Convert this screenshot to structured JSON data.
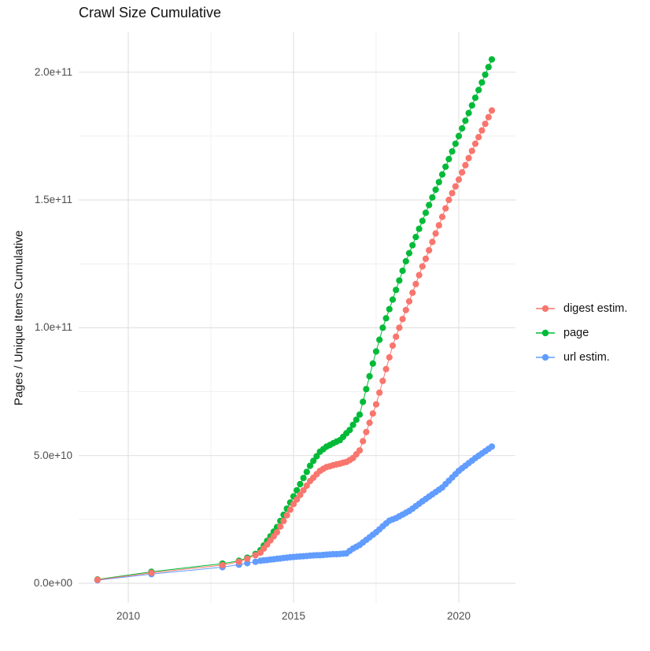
{
  "title": "Crawl Size Cumulative",
  "axes": {
    "y_label": "Pages / Unique Items Cumulative",
    "x_ticks": [
      {
        "label": "2010",
        "year": 2010
      },
      {
        "label": "2015",
        "year": 2015
      },
      {
        "label": "2020",
        "year": 2020
      }
    ],
    "y_ticks": [
      {
        "label": "0.0e+00",
        "value_billion": 0
      },
      {
        "label": "5.0e+10",
        "value_billion": 50
      },
      {
        "label": "1.0e+11",
        "value_billion": 100
      },
      {
        "label": "1.5e+11",
        "value_billion": 150
      },
      {
        "label": "2.0e+11",
        "value_billion": 200
      }
    ]
  },
  "legend": {
    "items": [
      {
        "label": "digest estim.",
        "color": "#F8766D"
      },
      {
        "label": "page",
        "color": "#00BA38"
      },
      {
        "label": "url estim.",
        "color": "#619CFF"
      }
    ]
  },
  "chart_data": {
    "type": "scatter",
    "title": "Crawl Size Cumulative",
    "xlabel": "",
    "ylabel": "Pages / Unique Items Cumulative",
    "x_unit": "year (decimal)",
    "value_unit": "billions of pages/items (1e9)",
    "xlim": [
      2008.5,
      2021.7
    ],
    "ylim_billion": [
      -10,
      215
    ],
    "grid": true,
    "legend_position": "right",
    "marker": "filled-circle-with-line",
    "series": [
      {
        "name": "digest estim.",
        "color": "#F8766D",
        "points": [
          [
            2009.07,
            1.4
          ],
          [
            2010.7,
            4.1
          ],
          [
            2012.85,
            7.1
          ],
          [
            2013.35,
            8.4
          ],
          [
            2013.6,
            9.6
          ],
          [
            2013.85,
            11.0
          ],
          [
            2014.0,
            12.0
          ],
          [
            2014.1,
            13.6
          ],
          [
            2014.2,
            15.2
          ],
          [
            2014.3,
            16.8
          ],
          [
            2014.4,
            18.4
          ],
          [
            2014.5,
            20.0
          ],
          [
            2014.6,
            22.2
          ],
          [
            2014.7,
            24.4
          ],
          [
            2014.8,
            26.6
          ],
          [
            2014.9,
            28.8
          ],
          [
            2015.0,
            31.0
          ],
          [
            2015.1,
            32.8
          ],
          [
            2015.2,
            34.6
          ],
          [
            2015.3,
            36.4
          ],
          [
            2015.4,
            38.2
          ],
          [
            2015.5,
            40.0
          ],
          [
            2015.6,
            41.3
          ],
          [
            2015.7,
            42.7
          ],
          [
            2015.8,
            44.0
          ],
          [
            2015.9,
            44.8
          ],
          [
            2016.0,
            45.5
          ],
          [
            2016.1,
            45.8
          ],
          [
            2016.2,
            46.2
          ],
          [
            2016.3,
            46.5
          ],
          [
            2016.4,
            46.8
          ],
          [
            2016.5,
            47.2
          ],
          [
            2016.6,
            47.5
          ],
          [
            2016.7,
            48.2
          ],
          [
            2016.8,
            49.0
          ],
          [
            2016.9,
            50.5
          ],
          [
            2017.0,
            52.0
          ],
          [
            2017.1,
            55.6
          ],
          [
            2017.2,
            59.2
          ],
          [
            2017.3,
            62.8
          ],
          [
            2017.4,
            66.4
          ],
          [
            2017.5,
            70.0
          ],
          [
            2017.6,
            74.6
          ],
          [
            2017.7,
            79.2
          ],
          [
            2017.8,
            83.8
          ],
          [
            2017.9,
            88.4
          ],
          [
            2018.0,
            93.0
          ],
          [
            2018.1,
            96.5
          ],
          [
            2018.2,
            100.0
          ],
          [
            2018.3,
            103.4
          ],
          [
            2018.4,
            106.9
          ],
          [
            2018.5,
            110.3
          ],
          [
            2018.6,
            113.7
          ],
          [
            2018.7,
            117.1
          ],
          [
            2018.8,
            120.6
          ],
          [
            2018.9,
            124.0
          ],
          [
            2019.0,
            127.0
          ],
          [
            2019.1,
            130.3
          ],
          [
            2019.2,
            133.6
          ],
          [
            2019.3,
            136.9
          ],
          [
            2019.4,
            140.1
          ],
          [
            2019.5,
            143.4
          ],
          [
            2019.6,
            146.7
          ],
          [
            2019.7,
            150.0
          ],
          [
            2019.8,
            152.7
          ],
          [
            2019.9,
            155.3
          ],
          [
            2020.0,
            158.0
          ],
          [
            2020.1,
            160.8
          ],
          [
            2020.2,
            163.6
          ],
          [
            2020.3,
            166.4
          ],
          [
            2020.4,
            169.2
          ],
          [
            2020.5,
            172.0
          ],
          [
            2020.6,
            174.6
          ],
          [
            2020.7,
            177.2
          ],
          [
            2020.8,
            179.8
          ],
          [
            2020.9,
            182.4
          ],
          [
            2021.0,
            185.0
          ]
        ]
      },
      {
        "name": "page",
        "color": "#00BA38",
        "points": [
          [
            2009.07,
            1.5
          ],
          [
            2010.7,
            4.5
          ],
          [
            2012.85,
            7.7
          ],
          [
            2013.35,
            8.8
          ],
          [
            2013.6,
            10.0
          ],
          [
            2013.85,
            11.5
          ],
          [
            2014.0,
            13.0
          ],
          [
            2014.1,
            14.8
          ],
          [
            2014.2,
            16.6
          ],
          [
            2014.3,
            18.4
          ],
          [
            2014.4,
            20.2
          ],
          [
            2014.5,
            22.0
          ],
          [
            2014.6,
            24.4
          ],
          [
            2014.7,
            26.8
          ],
          [
            2014.8,
            29.2
          ],
          [
            2014.9,
            31.6
          ],
          [
            2015.0,
            34.0
          ],
          [
            2015.1,
            36.4
          ],
          [
            2015.2,
            38.8
          ],
          [
            2015.3,
            41.2
          ],
          [
            2015.4,
            43.6
          ],
          [
            2015.5,
            46.0
          ],
          [
            2015.6,
            47.9
          ],
          [
            2015.7,
            49.7
          ],
          [
            2015.8,
            51.5
          ],
          [
            2015.9,
            52.5
          ],
          [
            2016.0,
            53.5
          ],
          [
            2016.1,
            54.1
          ],
          [
            2016.2,
            54.8
          ],
          [
            2016.3,
            55.4
          ],
          [
            2016.4,
            56.0
          ],
          [
            2016.5,
            57.3
          ],
          [
            2016.6,
            58.7
          ],
          [
            2016.7,
            60.0
          ],
          [
            2016.8,
            62.0
          ],
          [
            2016.9,
            64.0
          ],
          [
            2017.0,
            66.0
          ],
          [
            2017.1,
            71.0
          ],
          [
            2017.2,
            76.0
          ],
          [
            2017.3,
            81.0
          ],
          [
            2017.4,
            86.0
          ],
          [
            2017.5,
            90.7
          ],
          [
            2017.6,
            95.3
          ],
          [
            2017.7,
            100.0
          ],
          [
            2017.8,
            103.7
          ],
          [
            2017.9,
            107.3
          ],
          [
            2018.0,
            111.0
          ],
          [
            2018.1,
            114.8
          ],
          [
            2018.2,
            118.5
          ],
          [
            2018.3,
            122.3
          ],
          [
            2018.4,
            126.0
          ],
          [
            2018.5,
            129.2
          ],
          [
            2018.6,
            132.3
          ],
          [
            2018.7,
            135.5
          ],
          [
            2018.8,
            138.7
          ],
          [
            2018.9,
            141.8
          ],
          [
            2019.0,
            145.0
          ],
          [
            2019.1,
            148.0
          ],
          [
            2019.2,
            151.0
          ],
          [
            2019.3,
            154.0
          ],
          [
            2019.4,
            157.0
          ],
          [
            2019.5,
            160.0
          ],
          [
            2019.6,
            163.0
          ],
          [
            2019.7,
            166.0
          ],
          [
            2019.8,
            169.0
          ],
          [
            2019.9,
            172.0
          ],
          [
            2020.0,
            175.0
          ],
          [
            2020.1,
            178.0
          ],
          [
            2020.2,
            181.0
          ],
          [
            2020.3,
            184.0
          ],
          [
            2020.4,
            187.0
          ],
          [
            2020.5,
            190.0
          ],
          [
            2020.6,
            193.0
          ],
          [
            2020.7,
            196.0
          ],
          [
            2020.8,
            199.0
          ],
          [
            2020.9,
            202.0
          ],
          [
            2021.0,
            205.0
          ]
        ]
      },
      {
        "name": "url estim.",
        "color": "#619CFF",
        "points": [
          [
            2009.07,
            1.2
          ],
          [
            2010.7,
            3.6
          ],
          [
            2012.85,
            6.3
          ],
          [
            2013.35,
            7.3
          ],
          [
            2013.6,
            7.9
          ],
          [
            2013.85,
            8.4
          ],
          [
            2014.0,
            8.8
          ],
          [
            2014.1,
            9.0
          ],
          [
            2014.2,
            9.1
          ],
          [
            2014.3,
            9.3
          ],
          [
            2014.4,
            9.4
          ],
          [
            2014.5,
            9.6
          ],
          [
            2014.6,
            9.7
          ],
          [
            2014.7,
            9.9
          ],
          [
            2014.8,
            10.0
          ],
          [
            2014.9,
            10.2
          ],
          [
            2015.0,
            10.3
          ],
          [
            2015.1,
            10.4
          ],
          [
            2015.2,
            10.5
          ],
          [
            2015.3,
            10.6
          ],
          [
            2015.4,
            10.7
          ],
          [
            2015.5,
            10.8
          ],
          [
            2015.6,
            10.9
          ],
          [
            2015.7,
            11.0
          ],
          [
            2015.8,
            11.0
          ],
          [
            2015.9,
            11.1
          ],
          [
            2016.0,
            11.2
          ],
          [
            2016.1,
            11.3
          ],
          [
            2016.2,
            11.4
          ],
          [
            2016.3,
            11.4
          ],
          [
            2016.4,
            11.5
          ],
          [
            2016.5,
            11.6
          ],
          [
            2016.6,
            11.7
          ],
          [
            2016.7,
            12.7
          ],
          [
            2016.8,
            13.6
          ],
          [
            2016.9,
            14.3
          ],
          [
            2017.0,
            15.0
          ],
          [
            2017.1,
            16.0
          ],
          [
            2017.2,
            17.0
          ],
          [
            2017.3,
            18.0
          ],
          [
            2017.4,
            19.0
          ],
          [
            2017.5,
            20.0
          ],
          [
            2017.6,
            21.1
          ],
          [
            2017.7,
            22.3
          ],
          [
            2017.8,
            23.4
          ],
          [
            2017.9,
            24.5
          ],
          [
            2018.0,
            25.0
          ],
          [
            2018.1,
            25.5
          ],
          [
            2018.2,
            26.2
          ],
          [
            2018.3,
            26.9
          ],
          [
            2018.4,
            27.6
          ],
          [
            2018.5,
            28.3
          ],
          [
            2018.6,
            29.2
          ],
          [
            2018.7,
            30.2
          ],
          [
            2018.8,
            31.1
          ],
          [
            2018.9,
            32.1
          ],
          [
            2019.0,
            33.0
          ],
          [
            2019.1,
            33.9
          ],
          [
            2019.2,
            34.8
          ],
          [
            2019.3,
            35.7
          ],
          [
            2019.4,
            36.6
          ],
          [
            2019.5,
            37.5
          ],
          [
            2019.6,
            38.8
          ],
          [
            2019.7,
            40.1
          ],
          [
            2019.8,
            41.4
          ],
          [
            2019.9,
            42.7
          ],
          [
            2020.0,
            44.0
          ],
          [
            2020.1,
            45.0
          ],
          [
            2020.2,
            46.0
          ],
          [
            2020.3,
            47.0
          ],
          [
            2020.4,
            48.0
          ],
          [
            2020.5,
            49.0
          ],
          [
            2020.6,
            49.9
          ],
          [
            2020.7,
            50.8
          ],
          [
            2020.8,
            51.7
          ],
          [
            2020.9,
            52.6
          ],
          [
            2021.0,
            53.5
          ]
        ]
      }
    ]
  }
}
